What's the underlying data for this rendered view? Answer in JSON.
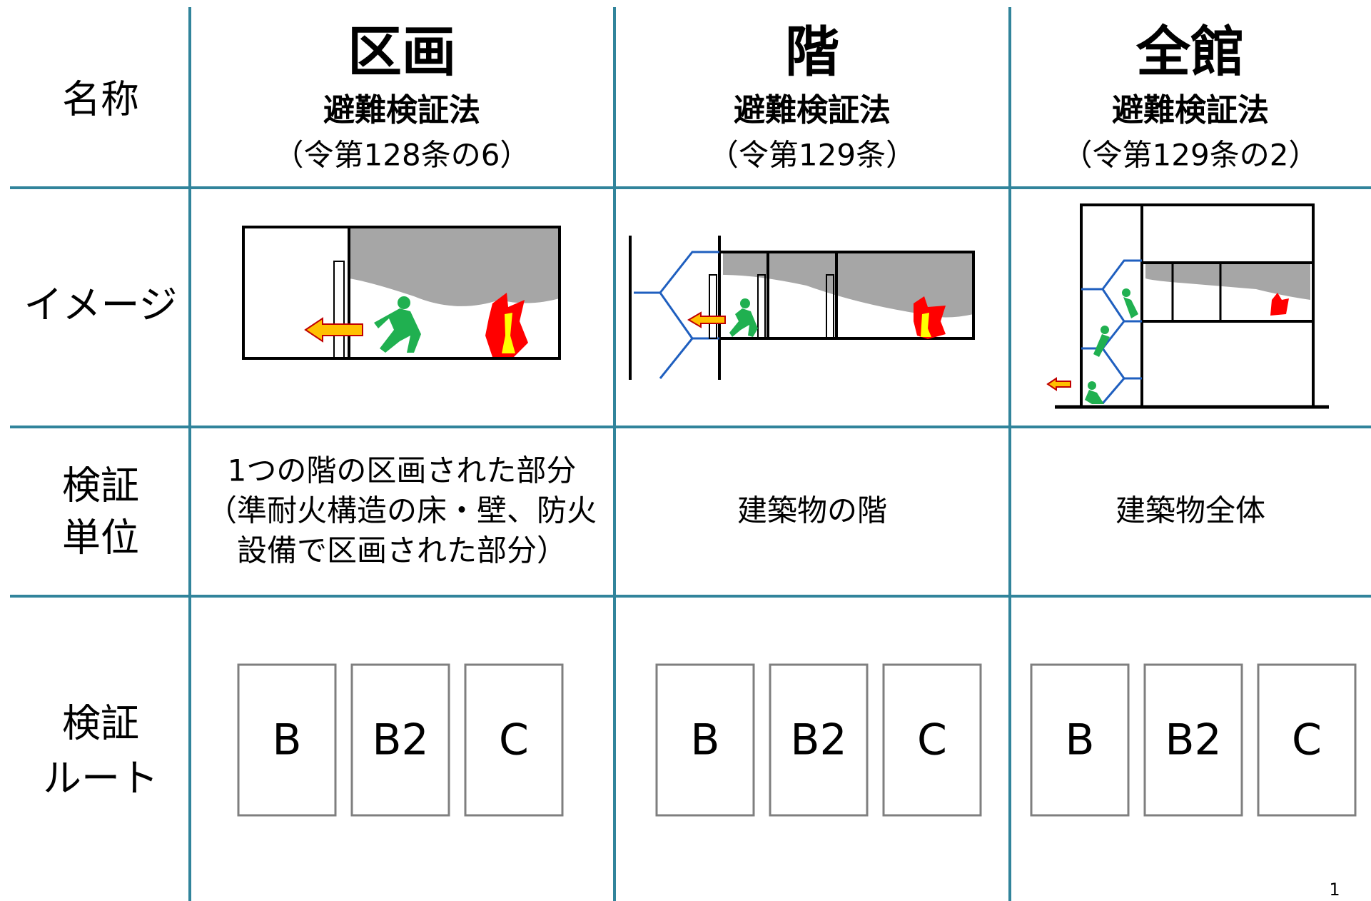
{
  "table": {
    "row_headers": [
      [
        "名称"
      ],
      [
        "イメージ"
      ],
      [
        "検証",
        "単位"
      ],
      [
        "検証",
        "ルート"
      ]
    ],
    "columns": [
      {
        "name": "区画",
        "subtitle": "避難検証法",
        "article": "（令第128条の6）",
        "unit": [
          "1つの階の区画された部分",
          "（準耐火構造の床・壁、防火",
          "設備で区画された部分）"
        ],
        "routes": [
          "B",
          "B2",
          "C"
        ]
      },
      {
        "name": "階",
        "subtitle": "避難検証法",
        "article": "（令第129条）",
        "unit": [
          "建築物の階"
        ],
        "routes": [
          "B",
          "B2",
          "C"
        ]
      },
      {
        "name": "全館",
        "subtitle": "避難検証法",
        "article": "（令第129条の2）",
        "unit": [
          "建築物全体"
        ],
        "routes": [
          "B",
          "B2",
          "C"
        ]
      }
    ]
  },
  "page_number": "1"
}
